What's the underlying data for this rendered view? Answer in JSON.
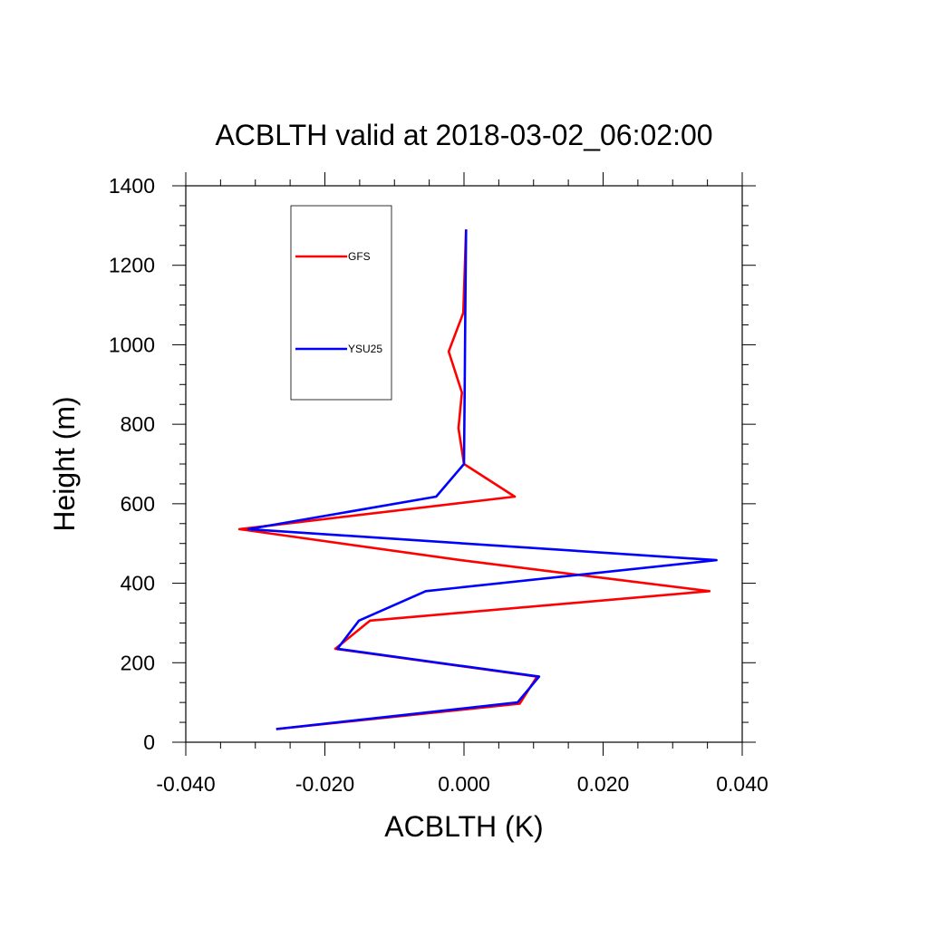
{
  "chart_data": {
    "type": "line",
    "title": "ACBLTH valid at 2018-03-02_06:02:00",
    "xlabel": "ACBLTH (K)",
    "ylabel": "Height (m)",
    "xlim": [
      -0.04,
      0.04
    ],
    "ylim": [
      0,
      1400
    ],
    "x_ticks": [
      "-0.040",
      "-0.020",
      "0.000",
      "0.020",
      "0.040"
    ],
    "y_ticks": [
      "0",
      "200",
      "400",
      "600",
      "800",
      "1000",
      "1200",
      "1400"
    ],
    "grid": false,
    "legend_position": "top-left",
    "series": [
      {
        "name": "GFS",
        "color": "#ff0000",
        "points": [
          {
            "x": -0.027,
            "y": 33
          },
          {
            "x": 0.008,
            "y": 97
          },
          {
            "x": 0.0105,
            "y": 165
          },
          {
            "x": -0.0185,
            "y": 235
          },
          {
            "x": -0.0135,
            "y": 306
          },
          {
            "x": 0.0353,
            "y": 380
          },
          {
            "x": -0.0005,
            "y": 458
          },
          {
            "x": -0.0323,
            "y": 536
          },
          {
            "x": 0.0073,
            "y": 618
          },
          {
            "x": 0.0,
            "y": 700
          },
          {
            "x": -0.0008,
            "y": 790
          },
          {
            "x": -0.0003,
            "y": 880
          },
          {
            "x": -0.0022,
            "y": 983
          },
          {
            "x": -0.0001,
            "y": 1080
          },
          {
            "x": 0.0003,
            "y": 1290
          }
        ]
      },
      {
        "name": "YSU25",
        "color": "#0000ff",
        "points": [
          {
            "x": -0.027,
            "y": 33
          },
          {
            "x": 0.0077,
            "y": 100
          },
          {
            "x": 0.0108,
            "y": 165
          },
          {
            "x": -0.0182,
            "y": 235
          },
          {
            "x": -0.0151,
            "y": 306
          },
          {
            "x": -0.0055,
            "y": 380
          },
          {
            "x": 0.0363,
            "y": 458
          },
          {
            "x": -0.031,
            "y": 536
          },
          {
            "x": -0.004,
            "y": 618
          },
          {
            "x": 0.0,
            "y": 700
          },
          {
            "x": 0.0001,
            "y": 900
          },
          {
            "x": 0.0002,
            "y": 1100
          },
          {
            "x": 0.0003,
            "y": 1290
          }
        ]
      }
    ]
  }
}
